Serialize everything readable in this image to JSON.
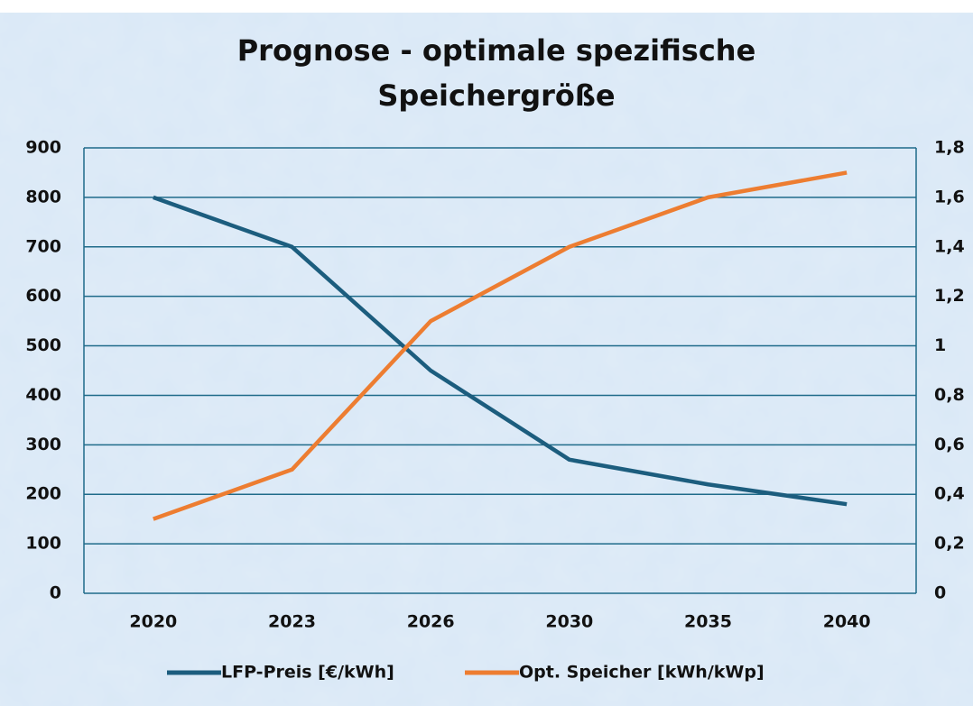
{
  "chart_data": {
    "type": "line",
    "title": [
      "Prognose - optimale spezifische",
      "Speichergröße"
    ],
    "categories": [
      "2020",
      "2023",
      "2026",
      "2030",
      "2035",
      "2040"
    ],
    "series": [
      {
        "name": "LFP-Preis [€/kWh]",
        "color": "#1c5d7e",
        "values": [
          800,
          700,
          450,
          270,
          220,
          180
        ]
      },
      {
        "name": "Opt. Speicher [kWh/kWp]",
        "color": "#ed7d31",
        "axis": "y2",
        "values": [
          0.3,
          0.5,
          1.1,
          1.4,
          1.6,
          1.7
        ]
      }
    ],
    "ylim": [
      0,
      900
    ],
    "yticks": [
      0,
      100,
      200,
      300,
      400,
      500,
      600,
      700,
      800,
      900
    ],
    "y2lim": [
      0,
      1.8
    ],
    "y2ticks": [
      0,
      {
        "value": 0.2,
        "label": "0,2"
      },
      {
        "value": 0.4,
        "label": "0,4"
      },
      {
        "value": 0.6,
        "label": "0,6"
      },
      {
        "value": 0.8,
        "label": "0,8"
      },
      1,
      {
        "value": 1.2,
        "label": "1,2"
      },
      {
        "value": 1.4,
        "label": "1,4"
      },
      {
        "value": 1.6,
        "label": "1,6"
      },
      {
        "value": 1.8,
        "label": "1,8"
      }
    ],
    "grid": true,
    "legend": "bottom"
  }
}
